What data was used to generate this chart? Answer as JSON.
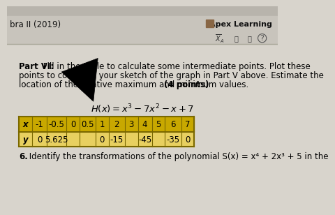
{
  "bg_top_bar": "#b8b4ac",
  "bg_second_bar": "#c8c4bc",
  "bg_main": "#d8d4cc",
  "header_text_top": "bra II (2019)",
  "apex_text": "Apex Learning",
  "part_vi_bold": "Part VI:",
  "part_vi_rest1": " Fill in the table to calculate some intermediate points. Plot these",
  "part_vi_line2": "points to complete your sketch of the graph in Part V above. Estimate the",
  "part_vi_line3a": "location of the relative maximum and minimum values. ",
  "points_bold": "(4 points)",
  "x_values": [
    "-1",
    "-0.5",
    "0",
    "0.5",
    "1",
    "2",
    "3",
    "4",
    "5",
    "6",
    "7"
  ],
  "y_values": [
    "0",
    "5.625",
    "",
    "",
    "0",
    "-15",
    "",
    "-45",
    "",
    "-35",
    "0"
  ],
  "footer_bold": "6.",
  "footer_rest": " Identify the transformations of the polynomial S(x) = x⁴ + 2x³ + 5 in the",
  "table_x_bg": "#c8a800",
  "table_y_bg": "#e8d060",
  "table_border": "#7a6800",
  "text_color": "#000000",
  "apex_color": "#000000"
}
